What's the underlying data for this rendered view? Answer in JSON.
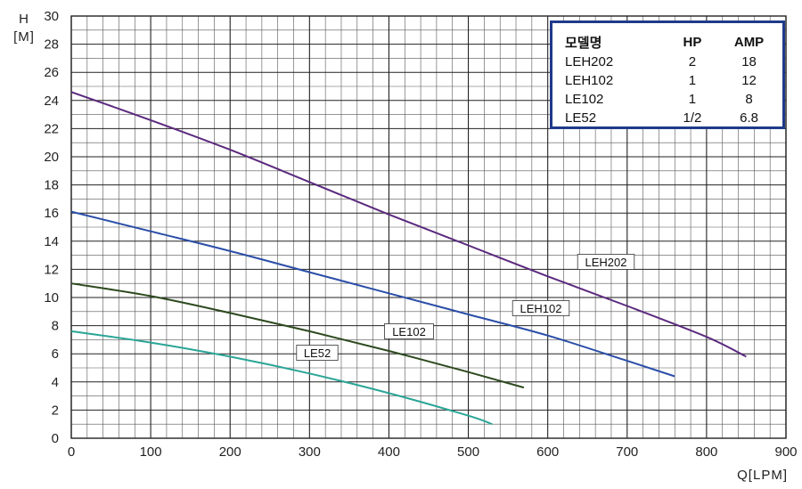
{
  "chart_data": {
    "type": "line",
    "xlabel": "Q[LPM]",
    "ylabel_line1": "H",
    "ylabel_line2": "[M]",
    "xlim": [
      0,
      900
    ],
    "ylim": [
      0,
      30
    ],
    "xticks": [
      0,
      100,
      200,
      300,
      400,
      500,
      600,
      700,
      800,
      900
    ],
    "yticks": [
      0,
      2,
      4,
      6,
      8,
      10,
      12,
      14,
      16,
      18,
      20,
      22,
      24,
      26,
      28,
      30
    ],
    "grid": true,
    "series": [
      {
        "name": "LEH202",
        "color": "#5b2a7e",
        "x": [
          0,
          100,
          200,
          300,
          400,
          500,
          600,
          700,
          800,
          850
        ],
        "y": [
          24.6,
          22.6,
          20.5,
          18.2,
          15.9,
          13.7,
          11.5,
          9.4,
          7.2,
          5.8
        ]
      },
      {
        "name": "LEH102",
        "color": "#2b4ea8",
        "x": [
          0,
          100,
          200,
          300,
          400,
          500,
          600,
          700,
          760
        ],
        "y": [
          16.1,
          14.7,
          13.3,
          11.8,
          10.3,
          8.8,
          7.3,
          5.5,
          4.4
        ]
      },
      {
        "name": "LE102",
        "color": "#2d4a1e",
        "x": [
          0,
          100,
          200,
          300,
          400,
          500,
          570
        ],
        "y": [
          11.0,
          10.1,
          8.9,
          7.6,
          6.2,
          4.7,
          3.6
        ]
      },
      {
        "name": "LE52",
        "color": "#2aa596",
        "x": [
          0,
          100,
          200,
          300,
          400,
          500,
          530
        ],
        "y": [
          7.6,
          6.8,
          5.8,
          4.6,
          3.2,
          1.6,
          1.0
        ]
      }
    ],
    "curve_labels": [
      {
        "text": "LEH202",
        "series": "LEH202"
      },
      {
        "text": "LEH102",
        "series": "LEH102"
      },
      {
        "text": "LE102",
        "series": "LE102"
      },
      {
        "text": "LE52",
        "series": "LE52"
      }
    ]
  },
  "spec_table": {
    "headers": [
      "모델명",
      "HP",
      "AMP"
    ],
    "rows": [
      [
        "LEH202",
        "2",
        "18"
      ],
      [
        "LEH102",
        "1",
        "12"
      ],
      [
        "LE102",
        "1",
        "8"
      ],
      [
        "LE52",
        "1/2",
        "6.8"
      ]
    ]
  }
}
